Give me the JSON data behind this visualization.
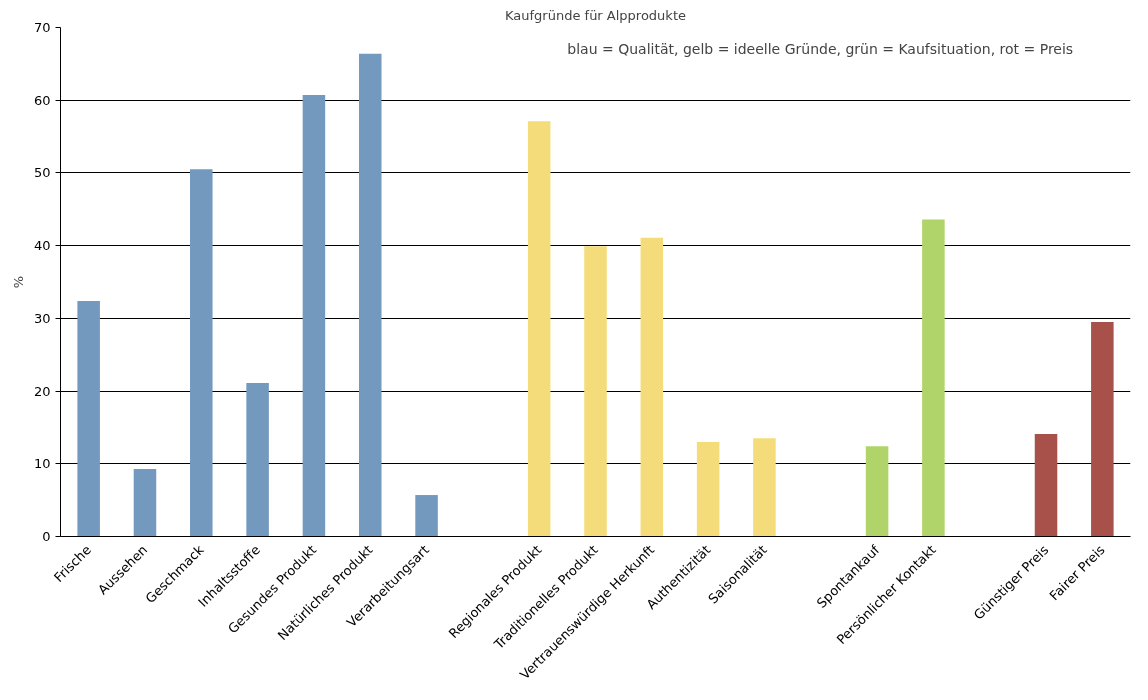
{
  "chart_data": {
    "type": "bar",
    "title": "Kaufgründe für Alpprodukte",
    "ylabel": "%",
    "categories": [
      "Frische",
      "Aussehen",
      "Geschmack",
      "Inhaltsstoffe",
      "Gesundes Produkt",
      "Natürliches Produkt",
      "Verarbeitungsart",
      null,
      "Regionales Produkt",
      "Traditionelles Produkt",
      "Vertrauenswürdige Herkunft",
      "Authentizität",
      "Saisonalität",
      null,
      "Spontankauf",
      "Persönlicher Kontakt",
      null,
      "Günstiger Preis",
      "Fairer Preis"
    ],
    "values": [
      32.4,
      9.3,
      50.5,
      21.1,
      60.7,
      66.4,
      5.7,
      null,
      57.1,
      39.9,
      41.1,
      13.0,
      13.5,
      null,
      12.4,
      43.6,
      null,
      14.1,
      29.5
    ],
    "colors": [
      "#7399bf",
      "#7399bf",
      "#7399bf",
      "#7399bf",
      "#7399bf",
      "#7399bf",
      "#7399bf",
      null,
      "#f5dc7a",
      "#f5dc7a",
      "#f5dc7a",
      "#f5dc7a",
      "#f5dc7a",
      null,
      "#b0d46a",
      "#b0d46a",
      null,
      "#a8504a",
      "#a8504a"
    ],
    "ylim": [
      0,
      70
    ],
    "yticks": [
      0,
      10,
      20,
      30,
      40,
      50,
      60,
      70
    ],
    "grid": "y",
    "annotations": [
      "blau = Qualität, gelb = ideelle Gründe, grün = Kaufsituation, rot = Preis"
    ]
  }
}
